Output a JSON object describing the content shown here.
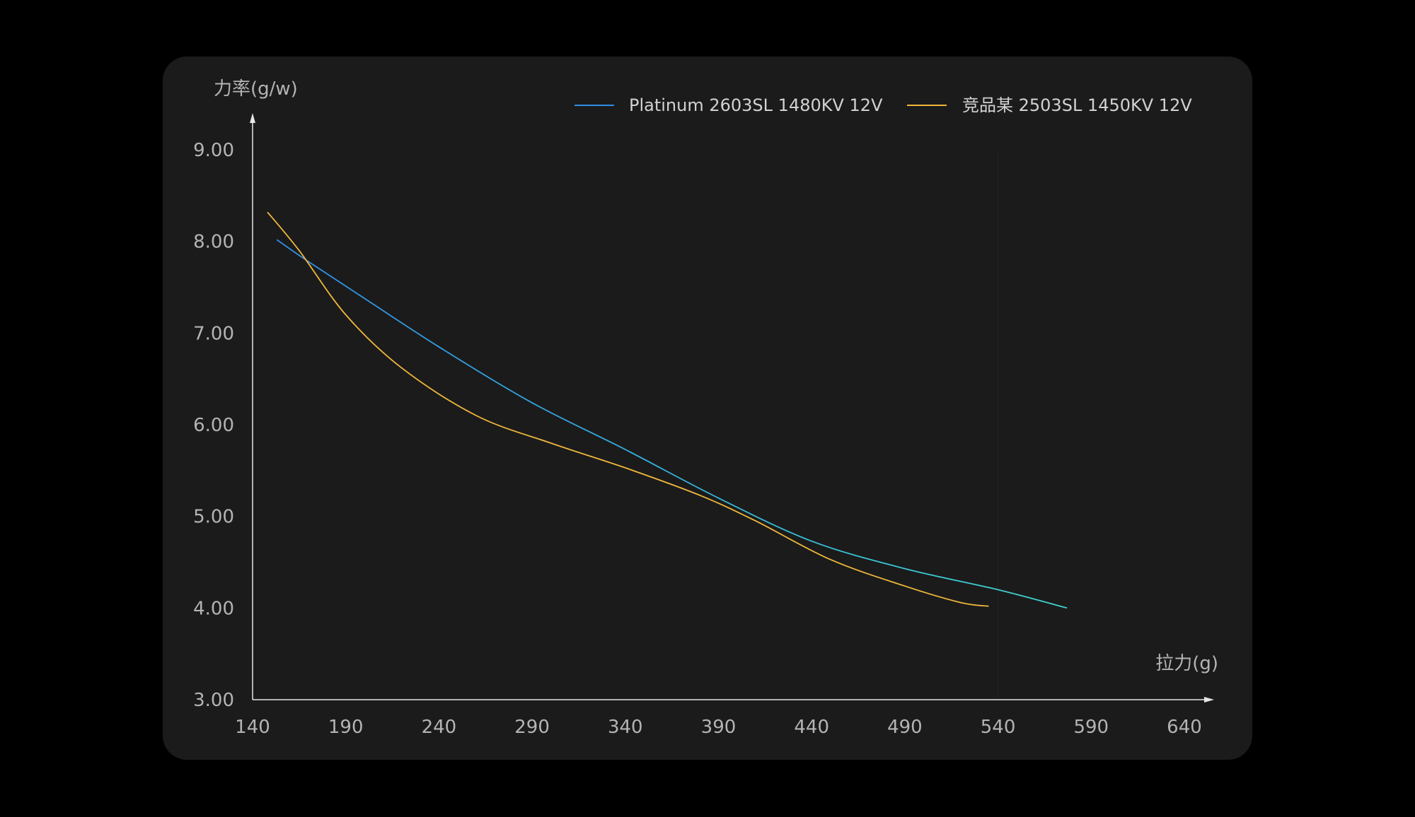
{
  "chart_data": {
    "type": "line",
    "ylabel": "力率(g/w)",
    "xlabel": "拉力(g)",
    "xlim": [
      140,
      640
    ],
    "ylim": [
      3,
      9
    ],
    "x_ticks": [
      "140",
      "190",
      "240",
      "290",
      "340",
      "390",
      "440",
      "490",
      "540",
      "590",
      "640"
    ],
    "y_ticks": [
      "3.00",
      "4.00",
      "5.00",
      "6.00",
      "7.00",
      "8.00",
      "9.00"
    ],
    "legend_position": "top-right",
    "grid": false,
    "series": [
      {
        "name": "Platinum 2603SL 1480KV 12V",
        "color": "#2f8ee6",
        "color_end": "#3ed6d0",
        "x": [
          153,
          170,
          200,
          240,
          290,
          340,
          390,
          440,
          490,
          540,
          577
        ],
        "y": [
          8.02,
          7.78,
          7.38,
          6.85,
          6.24,
          5.73,
          5.2,
          4.73,
          4.43,
          4.2,
          4.0
        ]
      },
      {
        "name": "竞品某 2503SL 1450KV 12V",
        "color": "#f0b73c",
        "x": [
          148,
          165,
          190,
          220,
          260,
          300,
          340,
          380,
          410,
          450,
          490,
          520,
          535
        ],
        "y": [
          8.32,
          7.9,
          7.2,
          6.62,
          6.1,
          5.8,
          5.53,
          5.23,
          4.95,
          4.53,
          4.24,
          4.06,
          4.02
        ]
      }
    ]
  }
}
